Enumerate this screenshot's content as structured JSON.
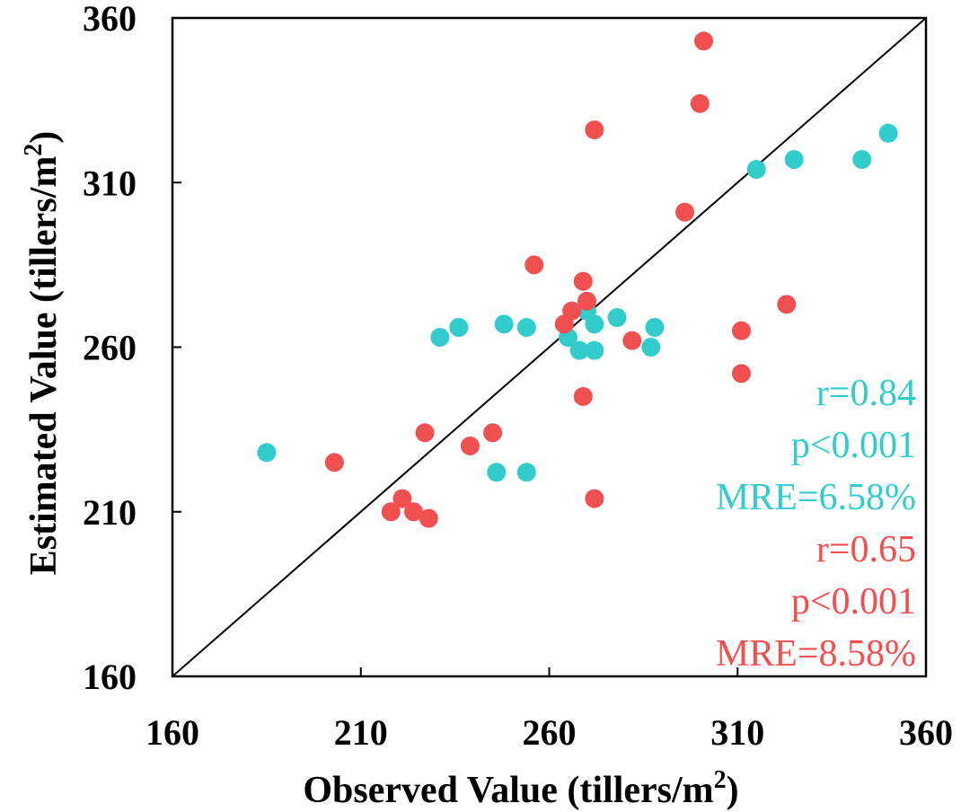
{
  "chart_data": {
    "type": "scatter",
    "xlabel": "Observed Value (tillers/m",
    "xlabel_sup": "2",
    "xlabel_end": ")",
    "ylabel": "Estimated Value (tillers/m",
    "ylabel_sup": "2",
    "ylabel_end": ")",
    "xlim": [
      160,
      360
    ],
    "ylim": [
      160,
      360
    ],
    "xticks": [
      160,
      210,
      260,
      310,
      360
    ],
    "yticks": [
      160,
      210,
      260,
      310,
      360
    ],
    "reference_line": "1:1",
    "series": [
      {
        "name": "cyan",
        "color": "#33CCCC",
        "points": [
          [
            185,
            228
          ],
          [
            231,
            263
          ],
          [
            236,
            266
          ],
          [
            248,
            267
          ],
          [
            254,
            266
          ],
          [
            265,
            263
          ],
          [
            268,
            259
          ],
          [
            270,
            271
          ],
          [
            272,
            267
          ],
          [
            272,
            259
          ],
          [
            278,
            269
          ],
          [
            287,
            260
          ],
          [
            288,
            266
          ],
          [
            246,
            222
          ],
          [
            254,
            222
          ],
          [
            315,
            314
          ],
          [
            325,
            317
          ],
          [
            343,
            317
          ],
          [
            350,
            325
          ]
        ],
        "stats": [
          "r=0.84",
          "p<0.001",
          "MRE=6.58%"
        ]
      },
      {
        "name": "red",
        "color": "#F05050",
        "points": [
          [
            203,
            225
          ],
          [
            218,
            210
          ],
          [
            221,
            214
          ],
          [
            224,
            210
          ],
          [
            227,
            234
          ],
          [
            228,
            208
          ],
          [
            239,
            230
          ],
          [
            245,
            234
          ],
          [
            256,
            285
          ],
          [
            264,
            267
          ],
          [
            266,
            271
          ],
          [
            269,
            280
          ],
          [
            270,
            274
          ],
          [
            269,
            245
          ],
          [
            272,
            326
          ],
          [
            272,
            214
          ],
          [
            282,
            262
          ],
          [
            296,
            301
          ],
          [
            300,
            334
          ],
          [
            301,
            353
          ],
          [
            311,
            265
          ],
          [
            311,
            252
          ],
          [
            323,
            273
          ]
        ],
        "stats": [
          "r=0.65",
          "p<0.001",
          "MRE=8.58%"
        ]
      }
    ]
  }
}
